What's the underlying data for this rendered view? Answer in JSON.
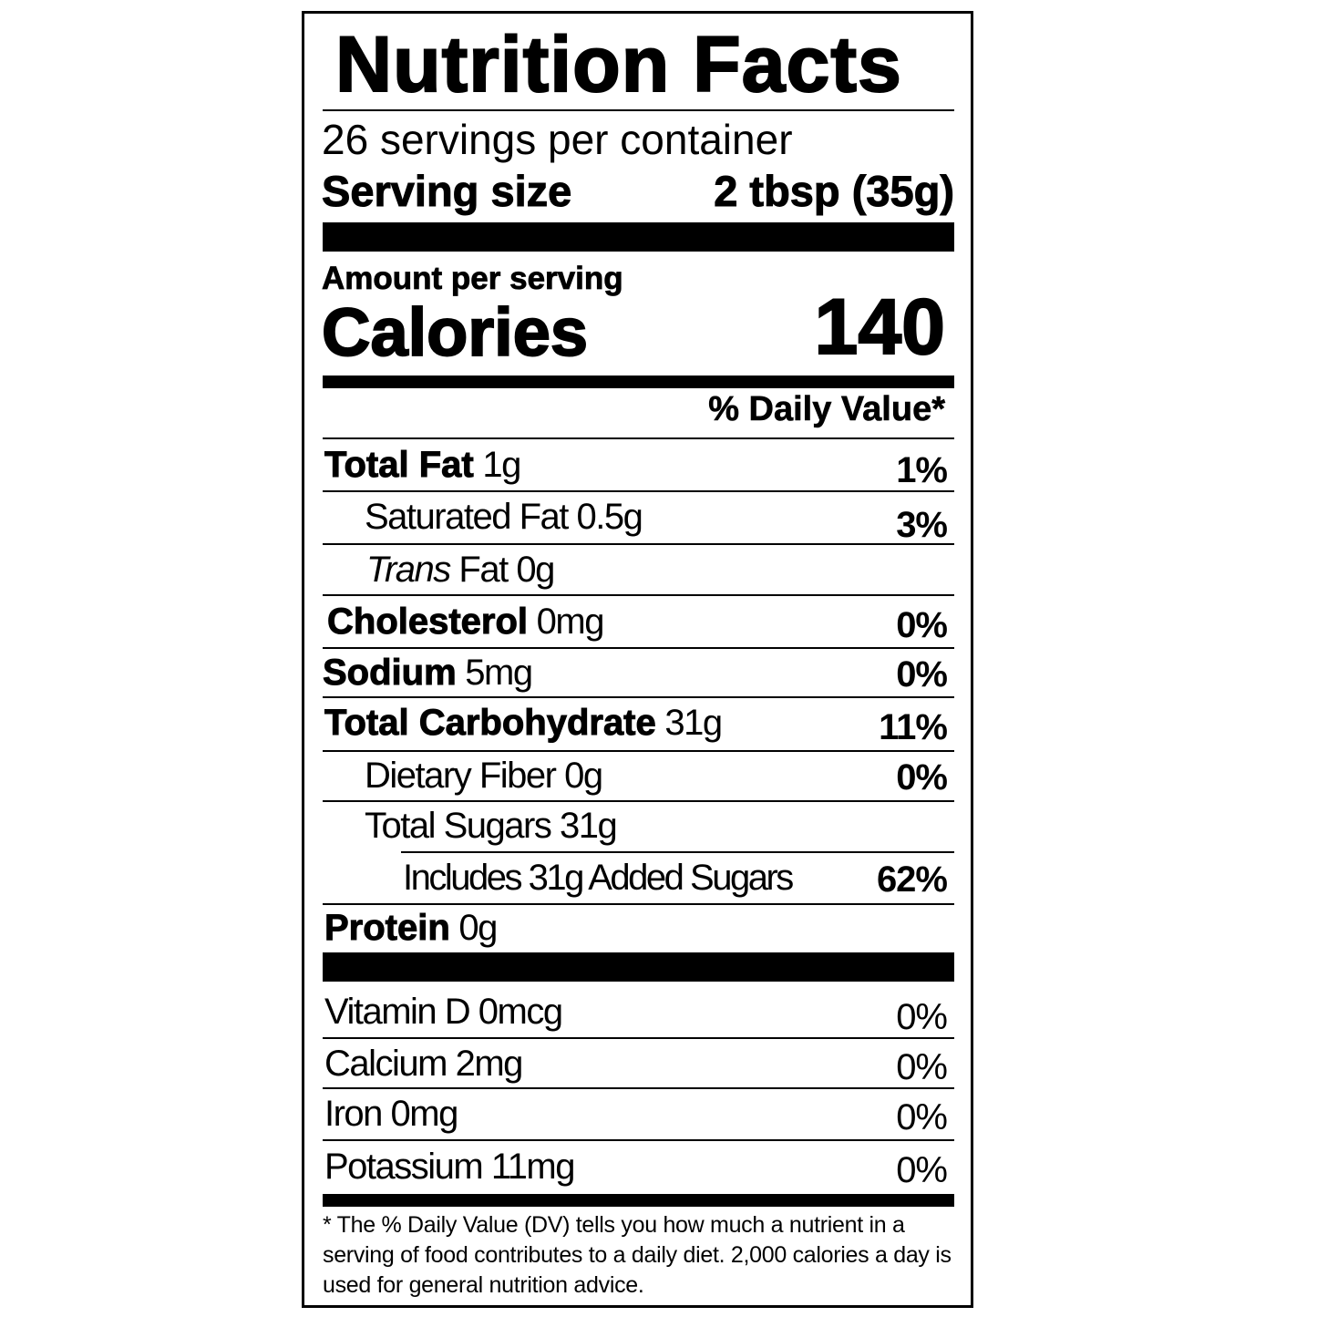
{
  "title": "Nutrition Facts",
  "servings_per_container": "26 servings per container",
  "serving_size": {
    "label": "Serving size",
    "value": "2 tbsp (35g)"
  },
  "amount_per_serving": "Amount per serving",
  "calories": {
    "label": "Calories",
    "value": "140"
  },
  "daily_value_header": "% Daily Value*",
  "nutrients": [
    {
      "name": "Total Fat",
      "amount": "1g",
      "dv": "1%"
    },
    {
      "name": "Saturated Fat",
      "amount": "0.5g",
      "dv": "3%"
    },
    {
      "name": "Trans",
      "name_suffix": "Fat",
      "amount": "0g",
      "dv": ""
    },
    {
      "name": "Cholesterol",
      "amount": "0mg",
      "dv": "0%"
    },
    {
      "name": "Sodium",
      "amount": "5mg",
      "dv": "0%"
    },
    {
      "name": "Total Carbohydrate",
      "amount": "31g",
      "dv": "11%"
    },
    {
      "name": "Dietary Fiber",
      "amount": "0g",
      "dv": "0%"
    },
    {
      "name": "Total Sugars",
      "amount": "31g",
      "dv": ""
    },
    {
      "name": "Includes 31g Added Sugars",
      "amount": "",
      "dv": "62%"
    },
    {
      "name": "Protein",
      "amount": "0g",
      "dv": ""
    }
  ],
  "vitamins": [
    {
      "label": "Vitamin D 0mcg",
      "dv": "0%"
    },
    {
      "label": "Calcium 2mg",
      "dv": "0%"
    },
    {
      "label": "Iron 0mg",
      "dv": "0%"
    },
    {
      "label": "Potassium 11mg",
      "dv": "0%"
    }
  ],
  "footnote": "* The % Daily Value (DV) tells you how much a nutrient in a serving of food contributes to a daily diet. 2,000 calories a day is used for general nutrition advice."
}
